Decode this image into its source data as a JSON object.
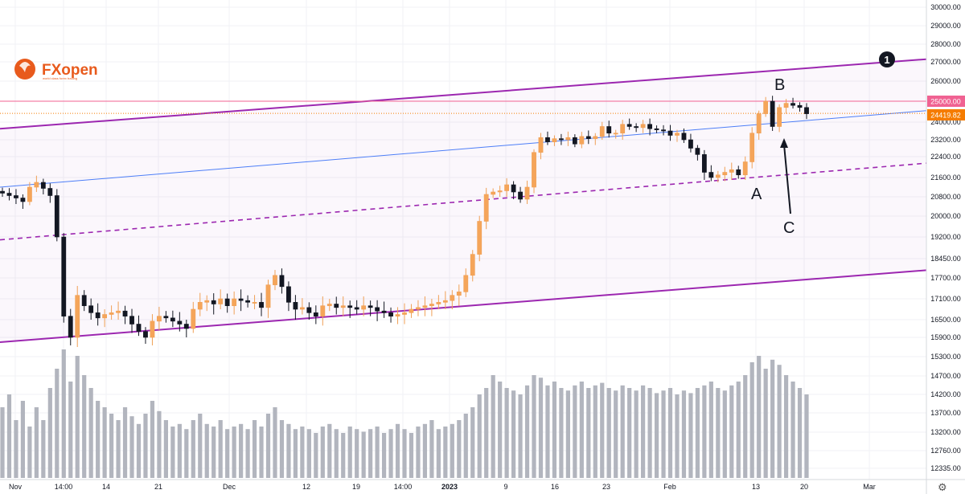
{
  "logo": {
    "brand": "FXopen",
    "brand_fx": "FX",
    "brand_rest": "open",
    "tagline": "world class forex trading"
  },
  "chart_data": {
    "type": "candlestick",
    "title": "",
    "y_ticks": [
      "30000.00",
      "29000.00",
      "28000.00",
      "27000.00",
      "26000.00",
      "25000.00",
      "24000.00",
      "23200.00",
      "22400.00",
      "21600.00",
      "20800.00",
      "20000.00",
      "19200.00",
      "18450.00",
      "17700.00",
      "17100.00",
      "16500.00",
      "15900.00",
      "15300.00",
      "14700.00",
      "14200.00",
      "13700.00",
      "13200.00",
      "12760.00",
      "12335.00"
    ],
    "x_ticks": [
      "Nov",
      "14:00",
      "14",
      "21",
      "Dec",
      "12",
      "19",
      "14:00",
      "2023",
      "9",
      "16",
      "23",
      "Feb",
      "13",
      "20",
      "Mar"
    ],
    "resistance_level": 25000.0,
    "resistance_label": "25000.00",
    "last_price": 24419.82,
    "last_price_label": "24419.82",
    "channel": {
      "upper_start": 23700,
      "upper_end": 27150,
      "mid_start": 19100,
      "mid_end": 22150,
      "lower_start": 15750,
      "lower_end": 18000
    },
    "blue_line": {
      "start": 21200,
      "end": 24550
    },
    "annotations": {
      "marker": "1",
      "A": "A",
      "B": "B",
      "C": "C"
    },
    "price_path": [
      20950,
      20850,
      20750,
      20600,
      21200,
      21400,
      21150,
      20850,
      19200,
      16600,
      15900,
      17200,
      16900,
      16700,
      16550,
      16650,
      16700,
      16750,
      16600,
      16350,
      16100,
      15900,
      16450,
      16600,
      16550,
      16450,
      16350,
      16200,
      16800,
      17000,
      17050,
      16950,
      17100,
      16900,
      17100,
      17050,
      17000,
      17000,
      16850,
      17500,
      17800,
      17450,
      17000,
      16800,
      16850,
      16700,
      16600,
      16900,
      16950,
      16850,
      16900,
      16850,
      16800,
      16900,
      16850,
      16750,
      16700,
      16600,
      16650,
      16700,
      16800,
      16850,
      16900,
      16950,
      17000,
      17050,
      17200,
      17300,
      17800,
      18600,
      19800,
      20900,
      21000,
      21050,
      21300,
      21000,
      20700,
      21200,
      22600,
      23300,
      23100,
      23250,
      23200,
      23300,
      23000,
      23350,
      23250,
      23350,
      23800,
      23500,
      23500,
      23900,
      23800,
      23750,
      23900,
      23700,
      23650,
      23600,
      23400,
      23500,
      23200,
      22800,
      22500,
      21800,
      21600,
      21700,
      21800,
      21900,
      21700,
      22200,
      23500,
      24400,
      25000,
      23800,
      24700,
      24900,
      24800,
      24700,
      24400
    ],
    "volume": [
      55,
      65,
      45,
      60,
      40,
      55,
      45,
      70,
      85,
      100,
      75,
      95,
      80,
      70,
      60,
      55,
      50,
      45,
      55,
      48,
      42,
      50,
      60,
      52,
      45,
      40,
      42,
      38,
      45,
      50,
      42,
      40,
      45,
      38,
      40,
      42,
      38,
      45,
      40,
      50,
      55,
      45,
      42,
      38,
      40,
      38,
      35,
      40,
      42,
      38,
      35,
      40,
      38,
      36,
      38,
      40,
      35,
      38,
      42,
      38,
      35,
      40,
      42,
      45,
      38,
      40,
      42,
      45,
      50,
      55,
      65,
      70,
      80,
      75,
      70,
      68,
      65,
      72,
      80,
      78,
      72,
      75,
      70,
      68,
      72,
      75,
      70,
      72,
      74,
      70,
      68,
      72,
      70,
      68,
      72,
      70,
      66,
      68,
      70,
      65,
      68,
      66,
      70,
      72,
      75,
      70,
      68,
      72,
      75,
      80,
      90,
      95,
      85,
      92,
      88,
      80,
      75,
      70,
      65
    ]
  }
}
